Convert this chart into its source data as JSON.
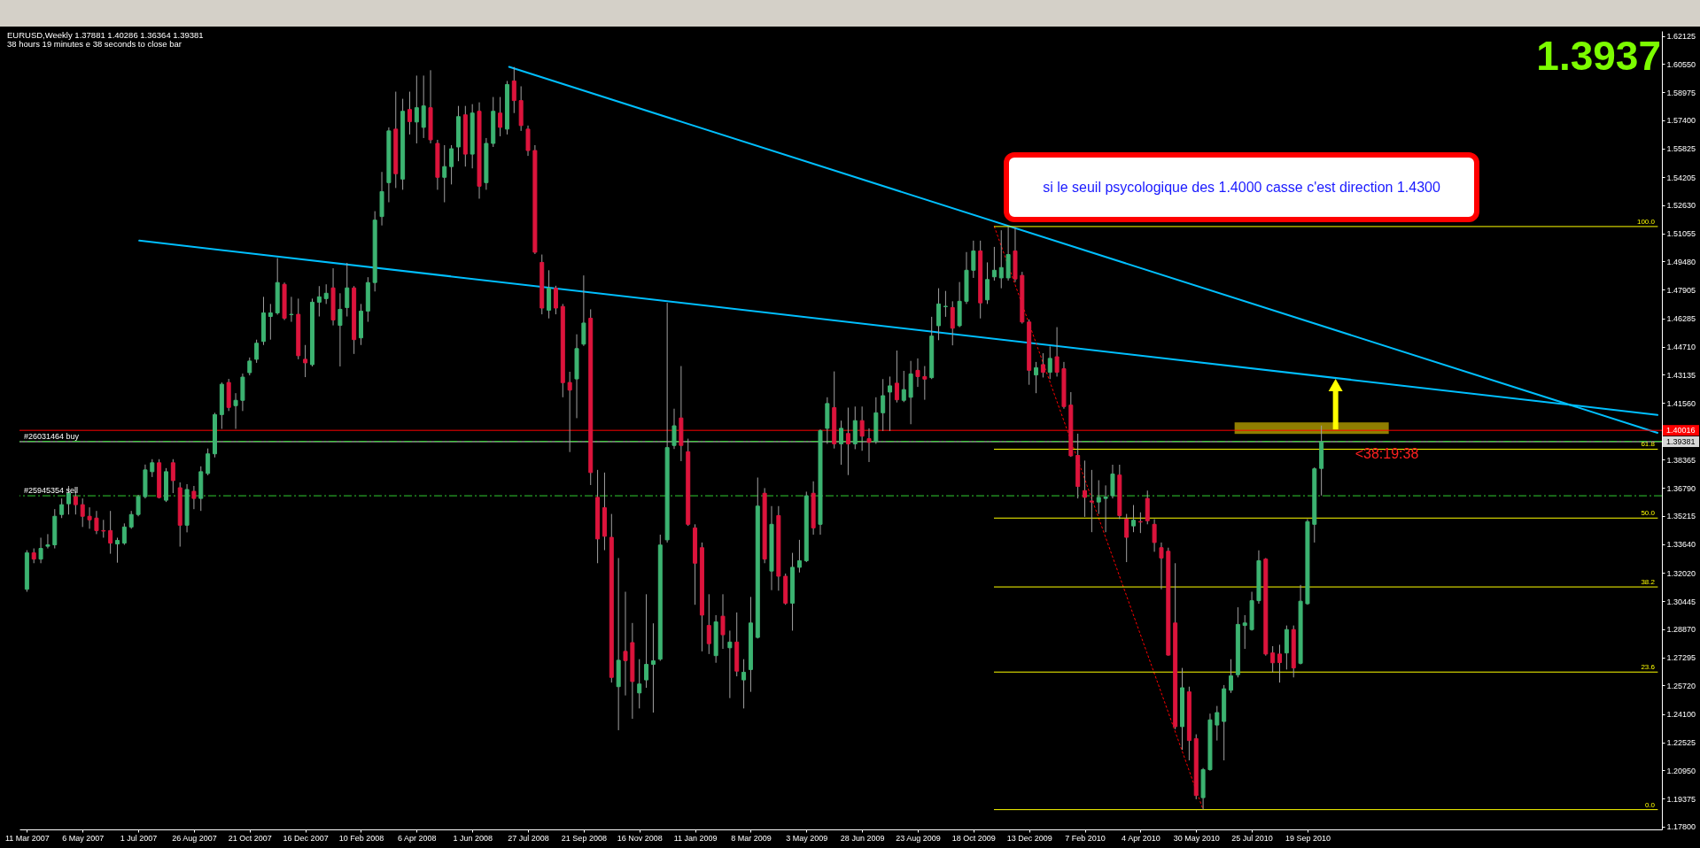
{
  "chart_data": {
    "type": "candlestick",
    "title": "EURUSD,Weekly 1.37881 1.40286 1.36364 1.39381",
    "subtitle": "38 hours 19 minutes e 38 seconds to close bar",
    "x": [
      "2007-03-11",
      "2007-03-18",
      "2007-03-25",
      "2007-04-01",
      "2007-04-08",
      "2007-04-15",
      "2007-04-22",
      "2007-04-29",
      "2007-05-06",
      "2007-05-13",
      "2007-05-20",
      "2007-05-27",
      "2007-06-03",
      "2007-06-10",
      "2007-06-17",
      "2007-06-24",
      "2007-07-01",
      "2007-07-08",
      "2007-07-15",
      "2007-07-22",
      "2007-07-29",
      "2007-08-05",
      "2007-08-12",
      "2007-08-19",
      "2007-08-26",
      "2007-09-02",
      "2007-09-09",
      "2007-09-16",
      "2007-09-23",
      "2007-09-30",
      "2007-10-07",
      "2007-10-14",
      "2007-10-21",
      "2007-10-28",
      "2007-11-04",
      "2007-11-11",
      "2007-11-18",
      "2007-11-25",
      "2007-12-02",
      "2007-12-09",
      "2007-12-16",
      "2007-12-23",
      "2007-12-30",
      "2008-01-06",
      "2008-01-13",
      "2008-01-20",
      "2008-01-27",
      "2008-02-03",
      "2008-02-10",
      "2008-02-17",
      "2008-02-24",
      "2008-03-02",
      "2008-03-09",
      "2008-03-16",
      "2008-03-23",
      "2008-03-30",
      "2008-04-06",
      "2008-04-13",
      "2008-04-20",
      "2008-04-27",
      "2008-05-04",
      "2008-05-11",
      "2008-05-18",
      "2008-05-25",
      "2008-06-01",
      "2008-06-08",
      "2008-06-15",
      "2008-06-22",
      "2008-06-29",
      "2008-07-06",
      "2008-07-13",
      "2008-07-20",
      "2008-07-27",
      "2008-08-03",
      "2008-08-10",
      "2008-08-17",
      "2008-08-24",
      "2008-08-31",
      "2008-09-07",
      "2008-09-14",
      "2008-09-21",
      "2008-09-28",
      "2008-10-05",
      "2008-10-12",
      "2008-10-19",
      "2008-10-26",
      "2008-11-02",
      "2008-11-09",
      "2008-11-16",
      "2008-11-23",
      "2008-11-30",
      "2008-12-07",
      "2008-12-14",
      "2008-12-21",
      "2008-12-28",
      "2009-01-04",
      "2009-01-11",
      "2009-01-18",
      "2009-01-25",
      "2009-02-01",
      "2009-02-08",
      "2009-02-15",
      "2009-02-22",
      "2009-03-01",
      "2009-03-08",
      "2009-03-15",
      "2009-03-22",
      "2009-03-29",
      "2009-04-05",
      "2009-04-12",
      "2009-04-19",
      "2009-04-26",
      "2009-05-03",
      "2009-05-10",
      "2009-05-17",
      "2009-05-24",
      "2009-05-31",
      "2009-06-07",
      "2009-06-14",
      "2009-06-21",
      "2009-06-28",
      "2009-07-05",
      "2009-07-12",
      "2009-07-19",
      "2009-07-26",
      "2009-08-02",
      "2009-08-09",
      "2009-08-16",
      "2009-08-23",
      "2009-08-30",
      "2009-09-06",
      "2009-09-13",
      "2009-09-20",
      "2009-09-27",
      "2009-10-04",
      "2009-10-11",
      "2009-10-18",
      "2009-10-25",
      "2009-11-01",
      "2009-11-08",
      "2009-11-15",
      "2009-11-22",
      "2009-11-29",
      "2009-12-06",
      "2009-12-13",
      "2009-12-20",
      "2009-12-27",
      "2010-01-03",
      "2010-01-10",
      "2010-01-17",
      "2010-01-24",
      "2010-01-31",
      "2010-02-07",
      "2010-02-14",
      "2010-02-21",
      "2010-02-28",
      "2010-03-07",
      "2010-03-14",
      "2010-03-21",
      "2010-03-28",
      "2010-04-04",
      "2010-04-11",
      "2010-04-18",
      "2010-04-25",
      "2010-05-02",
      "2010-05-09",
      "2010-05-16",
      "2010-05-23",
      "2010-05-30",
      "2010-06-06",
      "2010-06-13",
      "2010-06-20",
      "2010-06-27",
      "2010-07-04",
      "2010-07-11",
      "2010-07-18",
      "2010-07-25",
      "2010-08-01",
      "2010-08-08",
      "2010-08-15",
      "2010-08-22",
      "2010-08-29",
      "2010-09-05",
      "2010-09-12",
      "2010-09-19",
      "2010-09-26",
      "2010-10-03"
    ],
    "ohlc": [
      [
        1.3111,
        1.333,
        1.3097,
        1.3315
      ],
      [
        1.3315,
        1.334,
        1.3257,
        1.328
      ],
      [
        1.328,
        1.34,
        1.3257,
        1.334
      ],
      [
        1.3352,
        1.342,
        1.334,
        1.336
      ],
      [
        1.336,
        1.356,
        1.334,
        1.352
      ],
      [
        1.353,
        1.362,
        1.351,
        1.3585
      ],
      [
        1.359,
        1.369,
        1.353,
        1.365
      ],
      [
        1.363,
        1.366,
        1.353,
        1.3585
      ],
      [
        1.3585,
        1.362,
        1.346,
        1.352
      ],
      [
        1.352,
        1.357,
        1.345,
        1.35
      ],
      [
        1.351,
        1.355,
        1.342,
        1.344
      ],
      [
        1.344,
        1.35,
        1.34,
        1.3437
      ],
      [
        1.344,
        1.355,
        1.331,
        1.337
      ],
      [
        1.3365,
        1.34,
        1.326,
        1.3385
      ],
      [
        1.337,
        1.348,
        1.336,
        1.346
      ],
      [
        1.346,
        1.355,
        1.345,
        1.353
      ],
      [
        1.353,
        1.364,
        1.352,
        1.363
      ],
      [
        1.363,
        1.381,
        1.362,
        1.378
      ],
      [
        1.377,
        1.384,
        1.374,
        1.382
      ],
      [
        1.382,
        1.384,
        1.362,
        1.3625
      ],
      [
        1.361,
        1.379,
        1.36,
        1.377
      ],
      [
        1.382,
        1.384,
        1.365,
        1.372
      ],
      [
        1.368,
        1.371,
        1.335,
        1.347
      ],
      [
        1.347,
        1.37,
        1.343,
        1.367
      ],
      [
        1.366,
        1.369,
        1.356,
        1.362
      ],
      [
        1.362,
        1.38,
        1.355,
        1.377
      ],
      [
        1.376,
        1.39,
        1.375,
        1.387
      ],
      [
        1.387,
        1.41,
        1.385,
        1.409
      ],
      [
        1.409,
        1.427,
        1.401,
        1.426
      ],
      [
        1.427,
        1.429,
        1.411,
        1.413
      ],
      [
        1.414,
        1.421,
        1.401,
        1.417
      ],
      [
        1.417,
        1.432,
        1.411,
        1.43
      ],
      [
        1.4325,
        1.441,
        1.431,
        1.439
      ],
      [
        1.44,
        1.451,
        1.438,
        1.449
      ],
      [
        1.45,
        1.475,
        1.448,
        1.466
      ],
      [
        1.464,
        1.471,
        1.451,
        1.466
      ],
      [
        1.466,
        1.4967,
        1.465,
        1.483
      ],
      [
        1.482,
        1.483,
        1.462,
        1.463
      ],
      [
        1.465,
        1.475,
        1.461,
        1.4652
      ],
      [
        1.4652,
        1.474,
        1.44,
        1.442
      ],
      [
        1.44,
        1.448,
        1.43,
        1.438
      ],
      [
        1.437,
        1.474,
        1.436,
        1.472
      ],
      [
        1.472,
        1.481,
        1.464,
        1.475
      ],
      [
        1.474,
        1.482,
        1.471,
        1.477
      ],
      [
        1.48,
        1.491,
        1.459,
        1.462
      ],
      [
        1.459,
        1.477,
        1.436,
        1.468
      ],
      [
        1.469,
        1.494,
        1.464,
        1.48
      ],
      [
        1.48,
        1.481,
        1.443,
        1.451
      ],
      [
        1.452,
        1.471,
        1.448,
        1.467
      ],
      [
        1.467,
        1.486,
        1.461,
        1.483
      ],
      [
        1.483,
        1.523,
        1.478,
        1.518
      ],
      [
        1.52,
        1.545,
        1.515,
        1.534
      ],
      [
        1.539,
        1.57,
        1.528,
        1.568
      ],
      [
        1.569,
        1.59,
        1.536,
        1.544
      ],
      [
        1.541,
        1.586,
        1.535,
        1.579
      ],
      [
        1.58,
        1.59,
        1.566,
        1.5732
      ],
      [
        1.573,
        1.599,
        1.561,
        1.581
      ],
      [
        1.57,
        1.599,
        1.564,
        1.582
      ],
      [
        1.581,
        1.602,
        1.561,
        1.563
      ],
      [
        1.561,
        1.563,
        1.535,
        1.542
      ],
      [
        1.542,
        1.56,
        1.528,
        1.548
      ],
      [
        1.548,
        1.56,
        1.538,
        1.558
      ],
      [
        1.559,
        1.582,
        1.551,
        1.576
      ],
      [
        1.577,
        1.582,
        1.548,
        1.555
      ],
      [
        1.555,
        1.583,
        1.547,
        1.578
      ],
      [
        1.579,
        1.584,
        1.53,
        1.537
      ],
      [
        1.539,
        1.564,
        1.535,
        1.561
      ],
      [
        1.561,
        1.587,
        1.559,
        1.579
      ],
      [
        1.578,
        1.587,
        1.565,
        1.57
      ],
      [
        1.569,
        1.596,
        1.566,
        1.594
      ],
      [
        1.596,
        1.6038,
        1.578,
        1.585
      ],
      [
        1.585,
        1.593,
        1.568,
        1.571
      ],
      [
        1.569,
        1.571,
        1.554,
        1.557
      ],
      [
        1.557,
        1.56,
        1.499,
        1.5
      ],
      [
        1.4943,
        1.4987,
        1.4652,
        1.4687
      ],
      [
        1.4675,
        1.4899,
        1.4629,
        1.4798
      ],
      [
        1.4798,
        1.4812,
        1.4652,
        1.4687
      ],
      [
        1.4696,
        1.471,
        1.4187,
        1.4269
      ],
      [
        1.427,
        1.433,
        1.388,
        1.4227
      ],
      [
        1.429,
        1.454,
        1.407,
        1.446
      ],
      [
        1.4485,
        1.487,
        1.4475,
        1.4603
      ],
      [
        1.463,
        1.468,
        1.3695,
        1.3765
      ],
      [
        1.3626,
        1.378,
        1.3257,
        1.3393
      ],
      [
        1.3568,
        1.3765,
        1.333,
        1.3408
      ],
      [
        1.3402,
        1.3533,
        1.2588,
        1.2617
      ],
      [
        1.2565,
        1.3286,
        1.2321,
        1.2713
      ],
      [
        1.2763,
        1.3097,
        1.2516,
        1.2711
      ],
      [
        1.2812,
        1.2922,
        1.2385,
        1.2594
      ],
      [
        1.253,
        1.2719,
        1.2443,
        1.258
      ],
      [
        1.2603,
        1.3083,
        1.2559,
        1.269
      ],
      [
        1.269,
        1.292,
        1.242,
        1.271
      ],
      [
        1.2719,
        1.3417,
        1.271,
        1.3359
      ],
      [
        1.3388,
        1.4716,
        1.3373,
        1.3905
      ],
      [
        1.3917,
        1.4123,
        1.3897,
        1.4027
      ],
      [
        1.4071,
        1.4362,
        1.3829,
        1.3917
      ],
      [
        1.3882,
        1.3955,
        1.3466,
        1.3475
      ],
      [
        1.3455,
        1.3475,
        1.3024,
        1.3257
      ],
      [
        1.3344,
        1.3373,
        1.2763,
        1.2966
      ],
      [
        1.2908,
        1.3083,
        1.2748,
        1.2806
      ],
      [
        1.2739,
        1.2966,
        1.2699,
        1.2928
      ],
      [
        1.296,
        1.3083,
        1.2777,
        1.2856
      ],
      [
        1.2783,
        1.2879,
        1.2501,
        1.2815
      ],
      [
        1.2815,
        1.2981,
        1.2623,
        1.2652
      ],
      [
        1.2603,
        1.2719,
        1.2443,
        1.2646
      ],
      [
        1.2661,
        1.3068,
        1.2536,
        1.2922
      ],
      [
        1.2841,
        1.3737,
        1.2835,
        1.3577
      ],
      [
        1.3649,
        1.3678,
        1.3257,
        1.328
      ],
      [
        1.3213,
        1.3577,
        1.3106,
        1.3475
      ],
      [
        1.3524,
        1.3577,
        1.3103,
        1.3184
      ],
      [
        1.3184,
        1.3199,
        1.3024,
        1.3033
      ],
      [
        1.3033,
        1.3315,
        1.2879,
        1.3234
      ],
      [
        1.3234,
        1.3388,
        1.3205,
        1.3271
      ],
      [
        1.3271,
        1.3658,
        1.3263,
        1.3635
      ],
      [
        1.3649,
        1.3716,
        1.3417,
        1.3455
      ],
      [
        1.3475,
        1.4007,
        1.3417,
        1.4
      ],
      [
        1.4013,
        1.4187,
        1.3926,
        1.4152
      ],
      [
        1.4129,
        1.4332,
        1.39,
        1.3926
      ],
      [
        1.3926,
        1.4056,
        1.3809,
        1.4013
      ],
      [
        1.3984,
        1.4129,
        1.3751,
        1.3926
      ],
      [
        1.3926,
        1.4135,
        1.3896,
        1.4056
      ],
      [
        1.4056,
        1.4135,
        1.3887,
        1.3969
      ],
      [
        1.3955,
        1.4013,
        1.3824,
        1.3934
      ],
      [
        1.394,
        1.4187,
        1.3926,
        1.41
      ],
      [
        1.41,
        1.4289,
        1.3998,
        1.4196
      ],
      [
        1.4216,
        1.4303,
        1.3998,
        1.4251
      ],
      [
        1.4266,
        1.4449,
        1.4158,
        1.4173
      ],
      [
        1.417,
        1.4335,
        1.416,
        1.423
      ],
      [
        1.4187,
        1.4391,
        1.4036,
        1.4318
      ],
      [
        1.4338,
        1.4405,
        1.4245,
        1.4303
      ],
      [
        1.4303,
        1.4362,
        1.4173,
        1.4289
      ],
      [
        1.4297,
        1.4638,
        1.4289,
        1.453
      ],
      [
        1.4588,
        1.4798,
        1.4507,
        1.471
      ],
      [
        1.4695,
        1.4783,
        1.4638,
        1.4697
      ],
      [
        1.469,
        1.4725,
        1.4478,
        1.4574
      ],
      [
        1.4588,
        1.4833,
        1.458,
        1.4725
      ],
      [
        1.4725,
        1.5001,
        1.471,
        1.4899
      ],
      [
        1.4899,
        1.5065,
        1.4856,
        1.5007
      ],
      [
        1.5007,
        1.5065,
        1.4629,
        1.4716
      ],
      [
        1.4733,
        1.4943,
        1.471,
        1.4847
      ],
      [
        1.4862,
        1.503,
        1.4841,
        1.4899
      ],
      [
        1.4856,
        1.5123,
        1.4798,
        1.4914
      ],
      [
        1.4856,
        1.5144,
        1.4841,
        1.4987
      ],
      [
        1.5007,
        1.5141,
        1.4833,
        1.485
      ],
      [
        1.487,
        1.489,
        1.46,
        1.4609
      ],
      [
        1.4609,
        1.4623,
        1.4257,
        1.4338
      ],
      [
        1.4312,
        1.4385,
        1.421,
        1.4353
      ],
      [
        1.437,
        1.4434,
        1.4298,
        1.4327
      ],
      [
        1.4327,
        1.4472,
        1.4289,
        1.4405
      ],
      [
        1.4414,
        1.458,
        1.4303,
        1.4327
      ],
      [
        1.4347,
        1.4385,
        1.4123,
        1.4135
      ],
      [
        1.4143,
        1.4216,
        1.3853,
        1.3859
      ],
      [
        1.3861,
        1.3983,
        1.362,
        1.3687
      ],
      [
        1.3664,
        1.3832,
        1.3517,
        1.3626
      ],
      [
        1.3606,
        1.378,
        1.3431,
        1.36
      ],
      [
        1.36,
        1.3722,
        1.3533,
        1.3626
      ],
      [
        1.362,
        1.3693,
        1.3431,
        1.3628
      ],
      [
        1.3635,
        1.3809,
        1.362,
        1.3757
      ],
      [
        1.3751,
        1.3809,
        1.3504,
        1.3524
      ],
      [
        1.3504,
        1.3533,
        1.3263,
        1.3402
      ],
      [
        1.3466,
        1.3583,
        1.3431,
        1.3498
      ],
      [
        1.349,
        1.3542,
        1.3426,
        1.3488
      ],
      [
        1.362,
        1.3664,
        1.3475,
        1.3495
      ],
      [
        1.3475,
        1.3504,
        1.3321,
        1.3373
      ],
      [
        1.3344,
        1.3373,
        1.3111,
        1.3286
      ],
      [
        1.3324,
        1.3344,
        1.2739,
        1.2742
      ],
      [
        1.2922,
        1.3257,
        1.2327,
        1.2341
      ],
      [
        1.2341,
        1.267,
        1.2211,
        1.2559
      ],
      [
        1.2536,
        1.2565,
        1.2152,
        1.2263
      ],
      [
        1.2274,
        1.2298,
        1.1934,
        1.1955
      ],
      [
        1.1943,
        1.2109,
        1.1876,
        1.21
      ],
      [
        1.21,
        1.2414,
        1.2094,
        1.2379
      ],
      [
        1.235,
        1.2457,
        1.2263,
        1.242
      ],
      [
        1.237,
        1.2574,
        1.2152,
        1.2553
      ],
      [
        1.2545,
        1.2719,
        1.253,
        1.2626
      ],
      [
        1.2632,
        1.301,
        1.2617,
        1.2914
      ],
      [
        1.2908,
        1.2966,
        1.2777,
        1.2922
      ],
      [
        1.2885,
        1.3097,
        1.2879,
        1.3047
      ],
      [
        1.3047,
        1.3329,
        1.303,
        1.3271
      ],
      [
        1.328,
        1.3286,
        1.2739,
        1.2748
      ],
      [
        1.2754,
        1.2792,
        1.2646,
        1.2699
      ],
      [
        1.2748,
        1.28,
        1.2588,
        1.27
      ],
      [
        1.2754,
        1.2908,
        1.2661,
        1.2885
      ],
      [
        1.2885,
        1.2908,
        1.2617,
        1.267
      ],
      [
        1.2696,
        1.3135,
        1.269,
        1.3044
      ],
      [
        1.303,
        1.3504,
        1.3024,
        1.349
      ],
      [
        1.3475,
        1.3794,
        1.3373,
        1.3786
      ],
      [
        1.37881,
        1.40286,
        1.36364,
        1.39381
      ]
    ],
    "colors": [
      "#3cb371",
      "#dc143c",
      "#3cb371",
      "#3cb371",
      "#3cb371",
      "#3cb371",
      "#3cb371",
      "#dc143c",
      "#dc143c",
      "#dc143c",
      "#dc143c",
      "#dc143c",
      "#dc143c",
      "#3cb371",
      "#3cb371",
      "#3cb371",
      "#3cb371",
      "#3cb371",
      "#3cb371",
      "#dc143c",
      "#3cb371",
      "#dc143c",
      "#dc143c",
      "#3cb371",
      "#dc143c",
      "#3cb371",
      "#3cb371",
      "#3cb371",
      "#3cb371",
      "#dc143c",
      "#3cb371",
      "#3cb371",
      "#3cb371",
      "#3cb371",
      "#3cb371",
      "#3cb371",
      "#3cb371",
      "#dc143c",
      "#3cb371",
      "#dc143c",
      "#dc143c",
      "#3cb371",
      "#3cb371",
      "#3cb371",
      "#dc143c",
      "#3cb371",
      "#3cb371",
      "#dc143c",
      "#3cb371",
      "#3cb371",
      "#3cb371",
      "#3cb371",
      "#3cb371",
      "#dc143c",
      "#3cb371",
      "#dc143c",
      "#3cb371",
      "#3cb371",
      "#dc143c",
      "#dc143c",
      "#3cb371",
      "#3cb371",
      "#3cb371",
      "#dc143c",
      "#3cb371",
      "#dc143c",
      "#3cb371",
      "#3cb371",
      "#dc143c",
      "#3cb371",
      "#dc143c",
      "#dc143c",
      "#dc143c",
      "#dc143c",
      "#dc143c",
      "#3cb371",
      "#dc143c",
      "#dc143c",
      "#dc143c",
      "#3cb371",
      "#3cb371",
      "#dc143c",
      "#dc143c",
      "#dc143c",
      "#dc143c",
      "#3cb371",
      "#dc143c",
      "#dc143c",
      "#3cb371",
      "#3cb371",
      "#3cb371",
      "#3cb371",
      "#3cb371",
      "#3cb371",
      "#dc143c",
      "#dc143c",
      "#dc143c",
      "#dc143c",
      "#dc143c",
      "#3cb371",
      "#dc143c",
      "#3cb371",
      "#dc143c",
      "#3cb371",
      "#3cb371",
      "#3cb371",
      "#dc143c",
      "#3cb371",
      "#dc143c",
      "#dc143c",
      "#3cb371",
      "#3cb371",
      "#3cb371",
      "#dc143c",
      "#3cb371",
      "#3cb371",
      "#dc143c",
      "#3cb371",
      "#dc143c",
      "#3cb371",
      "#dc143c",
      "#dc143c",
      "#3cb371",
      "#3cb371",
      "#3cb371",
      "#dc143c",
      "#3cb371",
      "#3cb371",
      "#dc143c",
      "#dc143c",
      "#3cb371",
      "#3cb371",
      "#3cb371",
      "#dc143c",
      "#3cb371",
      "#3cb371",
      "#3cb371",
      "#dc143c",
      "#3cb371",
      "#3cb371",
      "#3cb371",
      "#3cb371",
      "#dc143c",
      "#dc143c",
      "#dc143c",
      "#3cb371",
      "#dc143c",
      "#3cb371",
      "#dc143c",
      "#dc143c",
      "#dc143c",
      "#dc143c",
      "#dc143c",
      "#dc143c",
      "#3cb371",
      "#3cb371",
      "#3cb371",
      "#dc143c",
      "#dc143c",
      "#3cb371",
      "#dc143c",
      "#dc143c",
      "#dc143c",
      "#dc143c",
      "#dc143c",
      "#dc143c",
      "#3cb371",
      "#dc143c",
      "#dc143c",
      "#3cb371",
      "#3cb371",
      "#3cb371",
      "#3cb371",
      "#3cb371",
      "#3cb371",
      "#3cb371",
      "#3cb371",
      "#3cb371",
      "#dc143c",
      "#dc143c",
      "#dc143c",
      "#3cb371",
      "#dc143c",
      "#3cb371",
      "#3cb371",
      "#3cb371",
      "#3cb371"
    ],
    "color": "#a0a0a0",
    "series": [
      {
        "type": "line",
        "x": [
          "2008-07-08",
          "2011-09-06"
        ],
        "values": [
          1.6039,
          1.3988
        ],
        "color": "#00bfff"
      },
      {
        "type": "line",
        "x": [
          "2007-07-02",
          "2011-09-06"
        ],
        "values": [
          1.5065,
          1.4088
        ],
        "color": "#00bfff"
      },
      {
        "type": "line",
        "x": [
          "2009-11-08",
          "2010-06-06"
        ],
        "values": [
          1.5144,
          1.1876
        ],
        "color": "#ff0000",
        "line_style": "dotted"
      },
      {
        "type": "line",
        "name": "100.0",
        "x": [
          "2009-11-08",
          "2011-09-06"
        ],
        "values": [
          1.5144,
          1.5144
        ],
        "color": "#ffff00"
      },
      {
        "type": "line",
        "name": "61.8",
        "x": [
          "2009-11-08",
          "2011-09-06"
        ],
        "values": [
          1.3896,
          1.3896
        ],
        "color": "#ffff00"
      },
      {
        "type": "line",
        "name": "50.0",
        "x": [
          "2009-11-08",
          "2011-09-06"
        ],
        "values": [
          1.351,
          1.351
        ],
        "color": "#ffff00"
      },
      {
        "type": "line",
        "name": "38.2",
        "x": [
          "2009-11-08",
          "2011-09-06"
        ],
        "values": [
          1.3124,
          1.3124
        ],
        "color": "#ffff00"
      },
      {
        "type": "line",
        "name": "23.6",
        "x": [
          "2009-11-08",
          "2011-09-06"
        ],
        "values": [
          1.2647,
          1.2647
        ],
        "color": "#ffff00"
      },
      {
        "type": "line",
        "name": "0.0",
        "x": [
          "2009-11-08",
          "2011-09-06"
        ],
        "values": [
          1.1876,
          1.1876
        ],
        "color": "#ffff00"
      }
    ],
    "xlim": [
      "2007-03-08",
      "2011-09-06"
    ],
    "ylim": [
      1.1765,
      1.624
    ],
    "xticks": [
      {
        "value": "2007-03-11",
        "label": "11 Mar 2007"
      },
      {
        "value": "2007-05-06",
        "label": "6 May 2007"
      },
      {
        "value": "2007-07-01",
        "label": "1 Jul 2007"
      },
      {
        "value": "2007-08-26",
        "label": "26 Aug 2007"
      },
      {
        "value": "2007-10-21",
        "label": "21 Oct 2007"
      },
      {
        "value": "2007-12-16",
        "label": "16 Dec 2007"
      },
      {
        "value": "2008-02-10",
        "label": "10 Feb 2008"
      },
      {
        "value": "2008-04-06",
        "label": "6 Apr 2008"
      },
      {
        "value": "2008-06-01",
        "label": "1 Jun 2008"
      },
      {
        "value": "2008-07-27",
        "label": "27 Jul 2008"
      },
      {
        "value": "2008-09-21",
        "label": "21 Sep 2008"
      },
      {
        "value": "2008-11-16",
        "label": "16 Nov 2008"
      },
      {
        "value": "2009-01-11",
        "label": "11 Jan 2009"
      },
      {
        "value": "2009-03-08",
        "label": "8 Mar 2009"
      },
      {
        "value": "2009-05-03",
        "label": "3 May 2009"
      },
      {
        "value": "2009-06-28",
        "label": "28 Jun 2009"
      },
      {
        "value": "2009-08-23",
        "label": "23 Aug 2009"
      },
      {
        "value": "2009-10-18",
        "label": "18 Oct 2009"
      },
      {
        "value": "2009-12-13",
        "label": "13 Dec 2009"
      },
      {
        "value": "2010-02-07",
        "label": "7 Feb 2010"
      },
      {
        "value": "2010-04-04",
        "label": "4 Apr 2010"
      },
      {
        "value": "2010-05-30",
        "label": "30 May 2010"
      },
      {
        "value": "2010-07-25",
        "label": "25 Jul 2010"
      },
      {
        "value": "2010-09-19",
        "label": "19 Sep 2010"
      }
    ],
    "yticks": [
      1.62125,
      {
        "value": 1.6055,
        "label": "1.60550"
      },
      1.58975,
      {
        "value": 1.574,
        "label": "1.57400"
      },
      1.55825,
      1.54205,
      {
        "value": 1.5263,
        "label": "1.52630"
      },
      1.51055,
      {
        "value": 1.4948,
        "label": "1.49480"
      },
      1.47905,
      1.46285,
      {
        "value": 1.4471,
        "label": "1.44710"
      },
      1.43135,
      {
        "value": 1.4156,
        "label": "1.41560"
      },
      1.38365,
      {
        "value": 1.3679,
        "label": "1.36790"
      },
      1.35215,
      {
        "value": 1.3364,
        "label": "1.33640"
      },
      {
        "value": 1.3202,
        "label": "1.32020"
      },
      1.30445,
      {
        "value": 1.2887,
        "label": "1.28870"
      },
      1.27295,
      {
        "value": 1.2572,
        "label": "1.25720"
      },
      {
        "value": 1.241,
        "label": "1.24100"
      },
      1.22525,
      {
        "value": 1.2095,
        "label": "1.20950"
      },
      1.19375,
      {
        "value": 1.178,
        "label": "1.17800"
      }
    ],
    "ref_lines": [
      {
        "axis": "y",
        "value": 1.40016,
        "label": "1.40016",
        "color": "#ff0000"
      },
      {
        "axis": "y",
        "value": 1.39381,
        "label": "1.39381",
        "color": "#d8d8d8"
      },
      {
        "axis": "y",
        "value": 1.394,
        "label": "#26031464 buy",
        "color": "#32cd32",
        "line_style": "dashed"
      },
      {
        "axis": "y",
        "value": 1.3635,
        "label": "#25945354 sell",
        "color": "#32cd32",
        "line_style": "dashed"
      }
    ],
    "annotations": [
      "si le seuil psycologique des 1.4000 casse c'est direction 1.4300",
      "1.3937",
      {
        "text": "<38:19:38",
        "x": "2010-10-03",
        "y": 1.39381
      }
    ]
  }
}
